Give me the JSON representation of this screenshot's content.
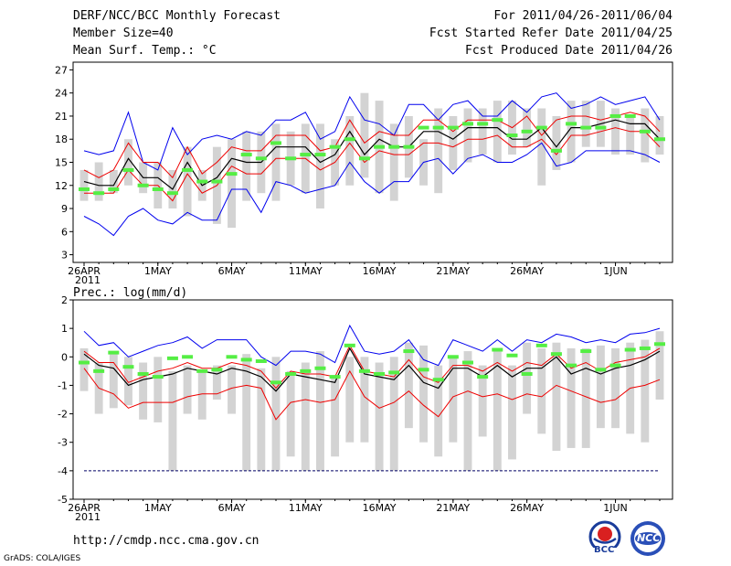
{
  "header": {
    "title": "DERF/NCC/BCC Monthly Forecast",
    "member_size": "Member Size=40",
    "variable": "Mean Surf. Temp.: °C",
    "period": "For 2011/04/26-2011/06/04",
    "started": "Fcst Started Refer Date 2011/04/25",
    "produced": "Fcst Produced Date 2011/04/26"
  },
  "footer": {
    "url": "http://cmdp.ncc.cma.gov.cn",
    "credit": "GrADS: COLA/IGES",
    "logo_bcc_text": "BCC",
    "logo_ncc_text": "NCC"
  },
  "colors": {
    "max": "#0000ee",
    "p90": "#ee0000",
    "mean": "#000000",
    "member": "#55ee44",
    "box": "#d3d3d3"
  },
  "chart_data": [
    {
      "type": "line",
      "title": "Mean Surf. Temp.: °C",
      "x_tick_labels": [
        "26APR",
        "1MAY",
        "6MAY",
        "11MAY",
        "16MAY",
        "21MAY",
        "26MAY",
        "1JUN"
      ],
      "x_tick_days": [
        1,
        6,
        11,
        16,
        21,
        26,
        31,
        37
      ],
      "year_label": "2011",
      "ylim": [
        2,
        28
      ],
      "y_ticks": [
        "3",
        "6",
        "9",
        "12",
        "15",
        "18",
        "21",
        "24",
        "27"
      ],
      "days": 40,
      "box_low": [
        10,
        10,
        11,
        12,
        11,
        9,
        9,
        8,
        10,
        7,
        6.5,
        10,
        11,
        10,
        12,
        11,
        9,
        12,
        12,
        13,
        11,
        10,
        13,
        12,
        11,
        14,
        15,
        16,
        15,
        16,
        17,
        12,
        14,
        15,
        17,
        17,
        16,
        16,
        15,
        16
      ],
      "box_high": [
        14,
        15,
        14,
        18,
        15,
        15,
        14,
        17,
        14,
        17,
        18,
        19,
        19,
        20,
        19,
        20,
        20,
        18,
        21,
        24,
        23,
        20,
        21,
        18,
        22,
        21,
        22,
        22,
        23,
        23,
        22,
        22,
        21,
        23,
        23,
        23,
        22,
        21,
        22,
        21
      ],
      "series": [
        {
          "name": "max",
          "color": "#0000ee",
          "values": [
            16.5,
            16,
            16.5,
            21.5,
            15,
            14,
            19.5,
            16,
            18,
            18.5,
            18,
            19,
            18.5,
            20.5,
            20.5,
            21.5,
            18,
            19,
            23.5,
            20.5,
            20,
            18.5,
            22.5,
            22.5,
            20.5,
            22.5,
            23,
            21,
            21,
            23,
            21.5,
            23.5,
            24,
            22,
            22.5,
            23.5,
            22.5,
            23,
            23.5,
            20.5
          ]
        },
        {
          "name": "p90",
          "color": "#ee0000",
          "values": [
            14,
            13,
            14,
            17.5,
            15,
            15,
            13,
            17,
            13.5,
            15,
            17,
            16.5,
            16.5,
            18.5,
            18.5,
            18.5,
            16.5,
            17,
            20.5,
            17.5,
            19,
            18.5,
            18.5,
            20.5,
            20.5,
            19,
            20.5,
            20.5,
            20.5,
            19.5,
            21,
            18.5,
            20.5,
            21,
            21,
            20.5,
            21,
            21.5,
            21,
            19
          ]
        },
        {
          "name": "mean",
          "color": "#000000",
          "values": [
            12.5,
            12,
            12,
            15.5,
            13,
            13,
            11.5,
            15,
            12,
            13,
            15.5,
            15,
            15,
            17,
            17,
            17,
            15,
            16,
            19,
            16,
            18,
            17,
            17,
            19,
            19,
            18,
            19.5,
            19.5,
            19.5,
            18,
            18,
            19.5,
            17,
            19.5,
            19.5,
            20,
            20.5,
            20,
            20,
            18
          ]
        },
        {
          "name": "p10",
          "color": "#ee0000",
          "values": [
            11,
            11,
            11,
            14,
            12,
            12,
            10,
            13.5,
            11,
            12,
            14.5,
            13.5,
            13.5,
            15.5,
            15.5,
            15.5,
            14,
            15,
            17.5,
            15,
            16.5,
            16,
            16,
            17.5,
            17.5,
            17,
            18,
            18,
            18.5,
            17,
            17,
            18,
            16,
            18.5,
            18.5,
            19,
            19.5,
            19,
            19,
            17
          ]
        },
        {
          "name": "min",
          "color": "#0000ee",
          "values": [
            8,
            7,
            5.5,
            8,
            9,
            7.5,
            7,
            8.5,
            7.5,
            7.5,
            11.5,
            11.5,
            8.5,
            12.5,
            12,
            11,
            11.5,
            12,
            15,
            12.5,
            11,
            12.5,
            12.5,
            15,
            15.5,
            13.5,
            15.5,
            16,
            15,
            15,
            16,
            17.5,
            14.5,
            15,
            16.5,
            16.5,
            16.5,
            16.5,
            16,
            15
          ]
        }
      ],
      "members": [
        11.5,
        11,
        11.5,
        14,
        12,
        11.5,
        11,
        14,
        12.5,
        12.5,
        13.5,
        16,
        15.5,
        17.5,
        15.5,
        16,
        16,
        17,
        18,
        15.5,
        17,
        17,
        17,
        19.5,
        19.5,
        19.5,
        20,
        20,
        20.5,
        18.5,
        19,
        19.5,
        16.5,
        20,
        19.5,
        19.5,
        21,
        21,
        19,
        18
      ]
    },
    {
      "type": "line",
      "title": "Prec.: log(mm/d)",
      "x_tick_labels": [
        "26APR",
        "1MAY",
        "6MAY",
        "11MAY",
        "16MAY",
        "21MAY",
        "26MAY",
        "1JUN"
      ],
      "x_tick_days": [
        1,
        6,
        11,
        16,
        21,
        26,
        31,
        37
      ],
      "year_label": "2011",
      "ylim": [
        -5,
        2
      ],
      "y_ticks": [
        "-5",
        "-4",
        "-3",
        "-2",
        "-1",
        "0",
        "1",
        "2"
      ],
      "days": 40,
      "floor_value": -4,
      "box_low": [
        -1.2,
        -2,
        -1.8,
        -1.7,
        -2.2,
        -2.3,
        -4,
        -2,
        -2.2,
        -1.5,
        -2,
        -4,
        -4,
        -4,
        -3.5,
        -4,
        -4,
        -3.5,
        -3,
        -3,
        -4,
        -4,
        -2.5,
        -3,
        -3.5,
        -3,
        -4,
        -2.8,
        -4,
        -3.6,
        -2,
        -2.7,
        -3.3,
        -3.2,
        -3.2,
        -2.5,
        -2.5,
        -2.7,
        -3,
        -1.5
      ],
      "box_high": [
        0.3,
        -0.2,
        0.2,
        0,
        -0.2,
        0,
        -0.5,
        -0.3,
        -0.5,
        -0.3,
        -0.3,
        0.1,
        -0.4,
        0,
        -0.5,
        -0.2,
        0.2,
        -0.7,
        0,
        0,
        -0.2,
        0,
        0.5,
        0.4,
        -0.3,
        0,
        0.2,
        -0.3,
        0.3,
        -0.3,
        0.5,
        0.3,
        0.5,
        0.3,
        0.3,
        0.4,
        0.3,
        0.5,
        0.6,
        0.9
      ],
      "series": [
        {
          "name": "max",
          "color": "#0000ee",
          "values": [
            0.9,
            0.4,
            0.5,
            0,
            0.2,
            0.4,
            0.5,
            0.7,
            0.3,
            0.6,
            0.6,
            0.6,
            0,
            -0.3,
            0.2,
            0.2,
            0.1,
            -0.2,
            1.1,
            0.2,
            0.1,
            0.2,
            0.6,
            -0.1,
            -0.3,
            0.6,
            0.4,
            0.2,
            0.6,
            0.2,
            0.6,
            0.5,
            0.8,
            0.7,
            0.5,
            0.6,
            0.5,
            0.8,
            0.85,
            1
          ]
        },
        {
          "name": "p90",
          "color": "#ee0000",
          "values": [
            0.2,
            -0.2,
            -0.2,
            -0.9,
            -0.7,
            -0.5,
            -0.4,
            -0.2,
            -0.4,
            -0.4,
            -0.2,
            -0.3,
            -0.5,
            -1.1,
            -0.5,
            -0.6,
            -0.6,
            -0.7,
            0.4,
            -0.5,
            -0.6,
            -0.7,
            -0.1,
            -0.7,
            -0.9,
            -0.3,
            -0.3,
            -0.5,
            -0.2,
            -0.5,
            -0.2,
            -0.3,
            0.1,
            -0.4,
            -0.2,
            -0.5,
            -0.2,
            -0.1,
            0,
            0.3
          ]
        },
        {
          "name": "mean",
          "color": "#000000",
          "values": [
            0.1,
            -0.3,
            -0.4,
            -1,
            -0.8,
            -0.7,
            -0.6,
            -0.4,
            -0.5,
            -0.6,
            -0.4,
            -0.5,
            -0.7,
            -1.2,
            -0.6,
            -0.7,
            -0.8,
            -0.9,
            0.3,
            -0.6,
            -0.7,
            -0.8,
            -0.3,
            -0.9,
            -1.1,
            -0.4,
            -0.4,
            -0.7,
            -0.3,
            -0.7,
            -0.4,
            -0.4,
            0,
            -0.6,
            -0.4,
            -0.6,
            -0.4,
            -0.3,
            -0.1,
            0.2
          ]
        },
        {
          "name": "p10",
          "color": "#ee0000",
          "values": [
            -0.4,
            -1.1,
            -1.3,
            -1.8,
            -1.6,
            -1.6,
            -1.6,
            -1.4,
            -1.3,
            -1.3,
            -1.1,
            -1,
            -1.1,
            -2.2,
            -1.6,
            -1.5,
            -1.6,
            -1.5,
            -0.5,
            -1.4,
            -1.8,
            -1.6,
            -1.2,
            -1.7,
            -2.1,
            -1.4,
            -1.2,
            -1.4,
            -1.3,
            -1.5,
            -1.3,
            -1.4,
            -1,
            -1.2,
            -1.4,
            -1.6,
            -1.5,
            -1.1,
            -1,
            -0.8
          ]
        },
        {
          "name": "min",
          "color": "#0000ee",
          "values": [
            -4,
            -4,
            -4,
            -4,
            -4,
            -4,
            -4,
            -4,
            -4,
            -4,
            -4,
            -4,
            -4,
            -4,
            -4,
            -4,
            -4,
            -4,
            -4,
            -4,
            -4,
            -4,
            -4,
            -4,
            -4,
            -4,
            -4,
            -4,
            -4,
            -4,
            -4,
            -4,
            -4,
            -4,
            -4,
            -4,
            -4,
            -4,
            -4,
            -4
          ]
        }
      ],
      "members": [
        -0.2,
        -0.5,
        0.15,
        -0.35,
        -0.6,
        -0.7,
        -0.05,
        0,
        -0.5,
        -0.45,
        0,
        -0.1,
        -0.15,
        -0.9,
        -0.6,
        -0.5,
        -0.4,
        -0.7,
        0.4,
        -0.5,
        -0.6,
        -0.55,
        0.2,
        -0.45,
        -0.8,
        0,
        -0.2,
        -0.7,
        0.25,
        0.05,
        -0.6,
        0.4,
        0.1,
        -0.3,
        0.2,
        -0.45,
        -0.3,
        0.25,
        0.3,
        0.45
      ]
    }
  ]
}
